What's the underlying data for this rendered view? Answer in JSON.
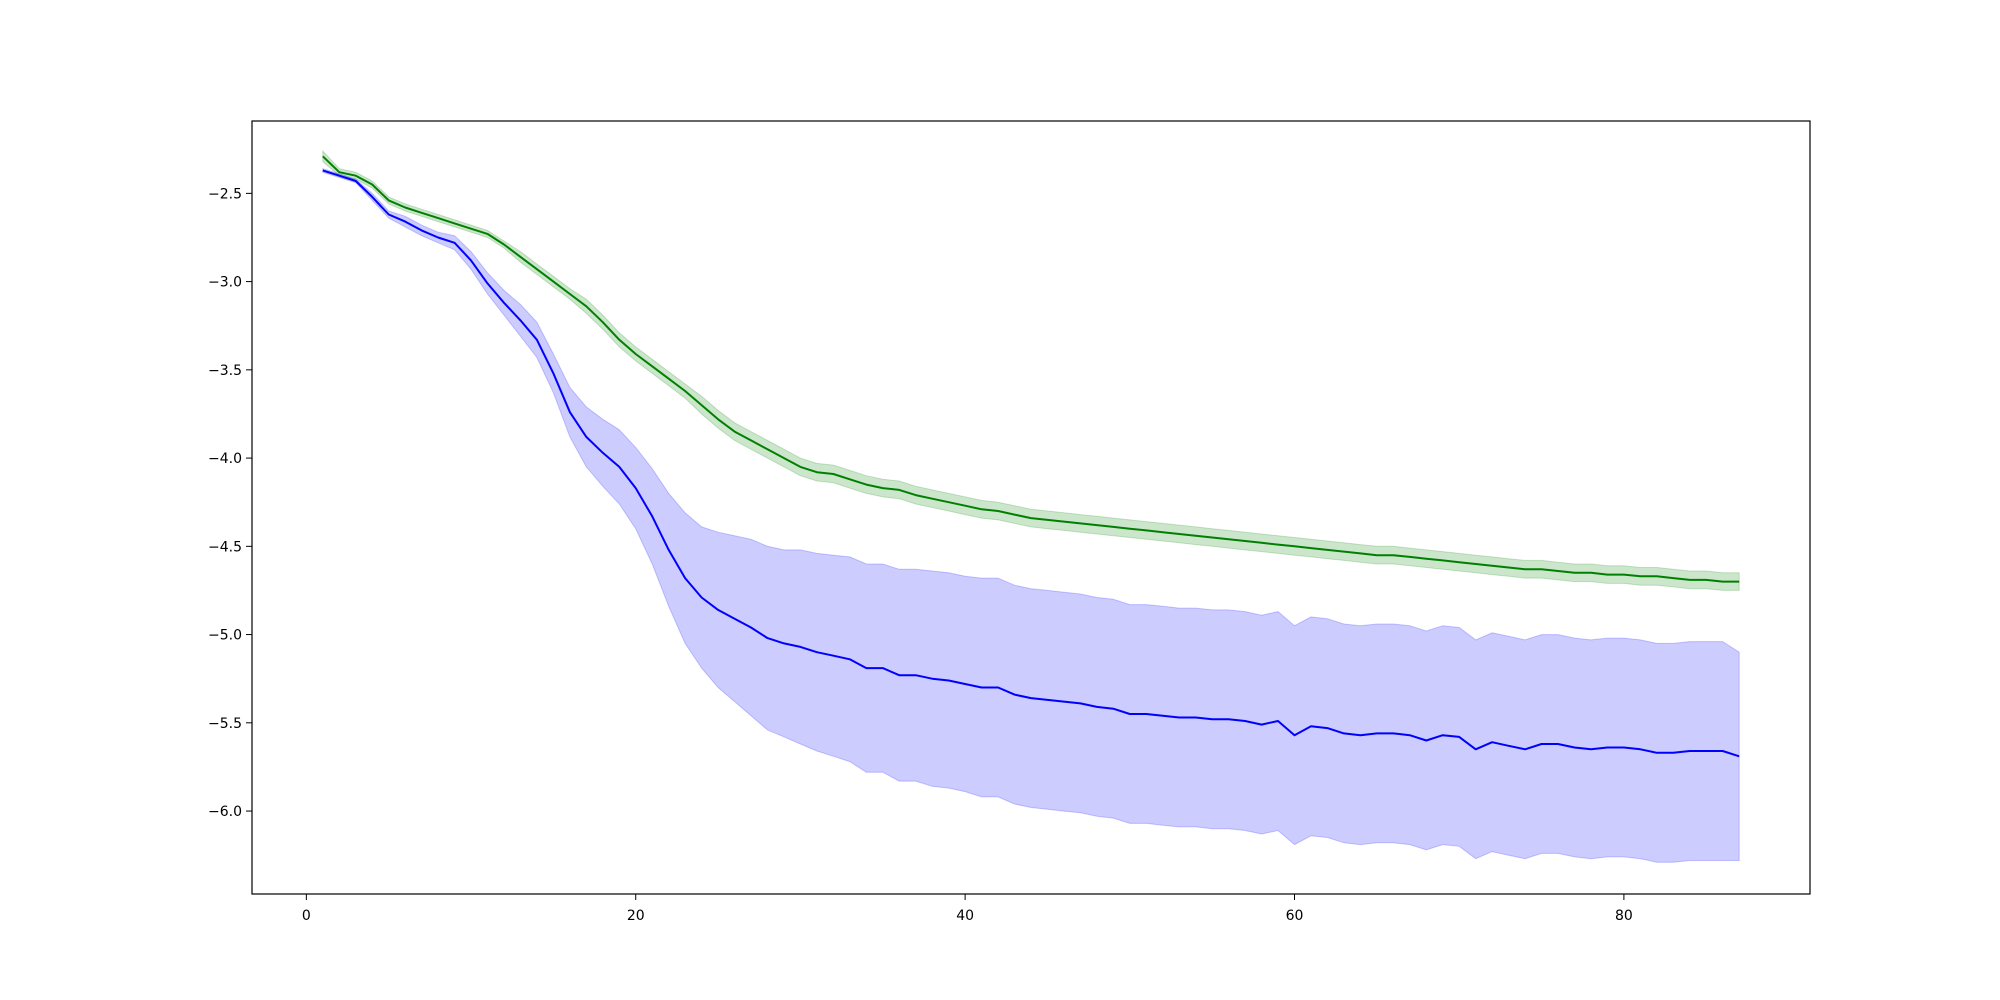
{
  "chart_data": {
    "type": "line",
    "title": "",
    "xlabel": "",
    "ylabel": "",
    "xlim": [
      -3.3,
      91.3
    ],
    "ylim": [
      -6.47,
      -2.09
    ],
    "xticks": [
      0,
      20,
      40,
      60,
      80
    ],
    "yticks": [
      -2.5,
      -3.0,
      -3.5,
      -4.0,
      -4.5,
      -5.0,
      -5.5,
      -6.0
    ],
    "xtick_labels": [
      "0",
      "20",
      "40",
      "60",
      "80"
    ],
    "ytick_labels": [
      "−2.5",
      "−3.0",
      "−3.5",
      "−4.0",
      "−4.5",
      "−5.0",
      "−5.5",
      "−6.0"
    ],
    "grid": false,
    "legend": "none",
    "series": [
      {
        "color": "#008000",
        "band_color": "#008000",
        "band_opacity": 0.2,
        "points": [
          [
            1,
            -2.29
          ],
          [
            2,
            -2.38
          ],
          [
            3,
            -2.4
          ],
          [
            4,
            -2.45
          ],
          [
            5,
            -2.54
          ],
          [
            6,
            -2.58
          ],
          [
            7,
            -2.61
          ],
          [
            8,
            -2.64
          ],
          [
            9,
            -2.67
          ],
          [
            10,
            -2.7
          ],
          [
            11,
            -2.73
          ],
          [
            12,
            -2.79
          ],
          [
            13,
            -2.86
          ],
          [
            14,
            -2.93
          ],
          [
            15,
            -3.0
          ],
          [
            16,
            -3.07
          ],
          [
            17,
            -3.14
          ],
          [
            18,
            -3.23
          ],
          [
            19,
            -3.33
          ],
          [
            20,
            -3.41
          ],
          [
            21,
            -3.48
          ],
          [
            22,
            -3.55
          ],
          [
            23,
            -3.62
          ],
          [
            24,
            -3.7
          ],
          [
            25,
            -3.78
          ],
          [
            26,
            -3.85
          ],
          [
            27,
            -3.9
          ],
          [
            28,
            -3.95
          ],
          [
            29,
            -4.0
          ],
          [
            30,
            -4.05
          ],
          [
            31,
            -4.08
          ],
          [
            32,
            -4.09
          ],
          [
            33,
            -4.12
          ],
          [
            34,
            -4.15
          ],
          [
            35,
            -4.17
          ],
          [
            36,
            -4.18
          ],
          [
            37,
            -4.21
          ],
          [
            38,
            -4.23
          ],
          [
            39,
            -4.25
          ],
          [
            40,
            -4.27
          ],
          [
            41,
            -4.29
          ],
          [
            42,
            -4.3
          ],
          [
            43,
            -4.32
          ],
          [
            44,
            -4.34
          ],
          [
            45,
            -4.35
          ],
          [
            46,
            -4.36
          ],
          [
            47,
            -4.37
          ],
          [
            48,
            -4.38
          ],
          [
            49,
            -4.39
          ],
          [
            50,
            -4.4
          ],
          [
            51,
            -4.41
          ],
          [
            52,
            -4.42
          ],
          [
            53,
            -4.43
          ],
          [
            54,
            -4.44
          ],
          [
            55,
            -4.45
          ],
          [
            56,
            -4.46
          ],
          [
            57,
            -4.47
          ],
          [
            58,
            -4.48
          ],
          [
            59,
            -4.49
          ],
          [
            60,
            -4.5
          ],
          [
            61,
            -4.51
          ],
          [
            62,
            -4.52
          ],
          [
            63,
            -4.53
          ],
          [
            64,
            -4.54
          ],
          [
            65,
            -4.55
          ],
          [
            66,
            -4.55
          ],
          [
            67,
            -4.56
          ],
          [
            68,
            -4.57
          ],
          [
            69,
            -4.58
          ],
          [
            70,
            -4.59
          ],
          [
            71,
            -4.6
          ],
          [
            72,
            -4.61
          ],
          [
            73,
            -4.62
          ],
          [
            74,
            -4.63
          ],
          [
            75,
            -4.63
          ],
          [
            76,
            -4.64
          ],
          [
            77,
            -4.65
          ],
          [
            78,
            -4.65
          ],
          [
            79,
            -4.66
          ],
          [
            80,
            -4.66
          ],
          [
            81,
            -4.67
          ],
          [
            82,
            -4.67
          ],
          [
            83,
            -4.68
          ],
          [
            84,
            -4.69
          ],
          [
            85,
            -4.69
          ],
          [
            86,
            -4.7
          ],
          [
            87,
            -4.7
          ]
        ],
        "band_halfwidth": [
          0.03,
          0.02,
          0.02,
          0.02,
          0.02,
          0.02,
          0.02,
          0.02,
          0.02,
          0.02,
          0.02,
          0.02,
          0.03,
          0.03,
          0.03,
          0.03,
          0.04,
          0.04,
          0.04,
          0.04,
          0.04,
          0.04,
          0.04,
          0.05,
          0.05,
          0.05,
          0.05,
          0.05,
          0.05,
          0.05,
          0.05,
          0.05,
          0.05,
          0.05,
          0.05,
          0.05,
          0.05,
          0.05,
          0.05,
          0.05,
          0.05,
          0.05,
          0.05,
          0.05,
          0.05,
          0.05,
          0.05,
          0.05,
          0.05,
          0.05,
          0.05,
          0.05,
          0.05,
          0.05,
          0.05,
          0.05,
          0.05,
          0.05,
          0.05,
          0.05,
          0.05,
          0.05,
          0.05,
          0.05,
          0.05,
          0.05,
          0.05,
          0.05,
          0.05,
          0.05,
          0.05,
          0.05,
          0.05,
          0.05,
          0.05,
          0.05,
          0.05,
          0.05,
          0.05,
          0.05,
          0.05,
          0.05,
          0.05,
          0.05,
          0.05,
          0.05,
          0.05
        ]
      },
      {
        "color": "#0000ff",
        "band_color": "#0000ff",
        "band_opacity": 0.2,
        "points": [
          [
            1,
            -2.37
          ],
          [
            2,
            -2.4
          ],
          [
            3,
            -2.43
          ],
          [
            4,
            -2.52
          ],
          [
            5,
            -2.62
          ],
          [
            6,
            -2.66
          ],
          [
            7,
            -2.71
          ],
          [
            8,
            -2.75
          ],
          [
            9,
            -2.78
          ],
          [
            10,
            -2.88
          ],
          [
            11,
            -3.01
          ],
          [
            12,
            -3.12
          ],
          [
            13,
            -3.22
          ],
          [
            14,
            -3.33
          ],
          [
            15,
            -3.52
          ],
          [
            16,
            -3.74
          ],
          [
            17,
            -3.88
          ],
          [
            18,
            -3.97
          ],
          [
            19,
            -4.05
          ],
          [
            20,
            -4.17
          ],
          [
            21,
            -4.33
          ],
          [
            22,
            -4.52
          ],
          [
            23,
            -4.68
          ],
          [
            24,
            -4.79
          ],
          [
            25,
            -4.86
          ],
          [
            26,
            -4.91
          ],
          [
            27,
            -4.96
          ],
          [
            28,
            -5.02
          ],
          [
            29,
            -5.05
          ],
          [
            30,
            -5.07
          ],
          [
            31,
            -5.1
          ],
          [
            32,
            -5.12
          ],
          [
            33,
            -5.14
          ],
          [
            34,
            -5.19
          ],
          [
            35,
            -5.19
          ],
          [
            36,
            -5.23
          ],
          [
            37,
            -5.23
          ],
          [
            38,
            -5.25
          ],
          [
            39,
            -5.26
          ],
          [
            40,
            -5.28
          ],
          [
            41,
            -5.3
          ],
          [
            42,
            -5.3
          ],
          [
            43,
            -5.34
          ],
          [
            44,
            -5.36
          ],
          [
            45,
            -5.37
          ],
          [
            46,
            -5.38
          ],
          [
            47,
            -5.39
          ],
          [
            48,
            -5.41
          ],
          [
            49,
            -5.42
          ],
          [
            50,
            -5.45
          ],
          [
            51,
            -5.45
          ],
          [
            52,
            -5.46
          ],
          [
            53,
            -5.47
          ],
          [
            54,
            -5.47
          ],
          [
            55,
            -5.48
          ],
          [
            56,
            -5.48
          ],
          [
            57,
            -5.49
          ],
          [
            58,
            -5.51
          ],
          [
            59,
            -5.49
          ],
          [
            60,
            -5.57
          ],
          [
            61,
            -5.52
          ],
          [
            62,
            -5.53
          ],
          [
            63,
            -5.56
          ],
          [
            64,
            -5.57
          ],
          [
            65,
            -5.56
          ],
          [
            66,
            -5.56
          ],
          [
            67,
            -5.57
          ],
          [
            68,
            -5.6
          ],
          [
            69,
            -5.57
          ],
          [
            70,
            -5.58
          ],
          [
            71,
            -5.65
          ],
          [
            72,
            -5.61
          ],
          [
            73,
            -5.63
          ],
          [
            74,
            -5.65
          ],
          [
            75,
            -5.62
          ],
          [
            76,
            -5.62
          ],
          [
            77,
            -5.64
          ],
          [
            78,
            -5.65
          ],
          [
            79,
            -5.64
          ],
          [
            80,
            -5.64
          ],
          [
            81,
            -5.65
          ],
          [
            82,
            -5.67
          ],
          [
            83,
            -5.67
          ],
          [
            84,
            -5.66
          ],
          [
            85,
            -5.66
          ],
          [
            86,
            -5.66
          ],
          [
            87,
            -5.69
          ]
        ],
        "band_halfwidth": [
          0.01,
          0.01,
          0.01,
          0.02,
          0.02,
          0.03,
          0.03,
          0.03,
          0.04,
          0.05,
          0.06,
          0.07,
          0.09,
          0.1,
          0.11,
          0.14,
          0.17,
          0.19,
          0.21,
          0.23,
          0.27,
          0.32,
          0.37,
          0.4,
          0.44,
          0.47,
          0.5,
          0.52,
          0.53,
          0.55,
          0.56,
          0.57,
          0.58,
          0.59,
          0.59,
          0.6,
          0.6,
          0.61,
          0.61,
          0.61,
          0.62,
          0.62,
          0.62,
          0.62,
          0.62,
          0.62,
          0.62,
          0.62,
          0.62,
          0.62,
          0.62,
          0.62,
          0.62,
          0.62,
          0.62,
          0.62,
          0.62,
          0.62,
          0.62,
          0.62,
          0.62,
          0.62,
          0.62,
          0.62,
          0.62,
          0.62,
          0.62,
          0.62,
          0.62,
          0.62,
          0.62,
          0.62,
          0.62,
          0.62,
          0.62,
          0.62,
          0.62,
          0.62,
          0.62,
          0.62,
          0.62,
          0.62,
          0.62,
          0.62,
          0.62,
          0.62,
          0.59
        ]
      }
    ]
  }
}
